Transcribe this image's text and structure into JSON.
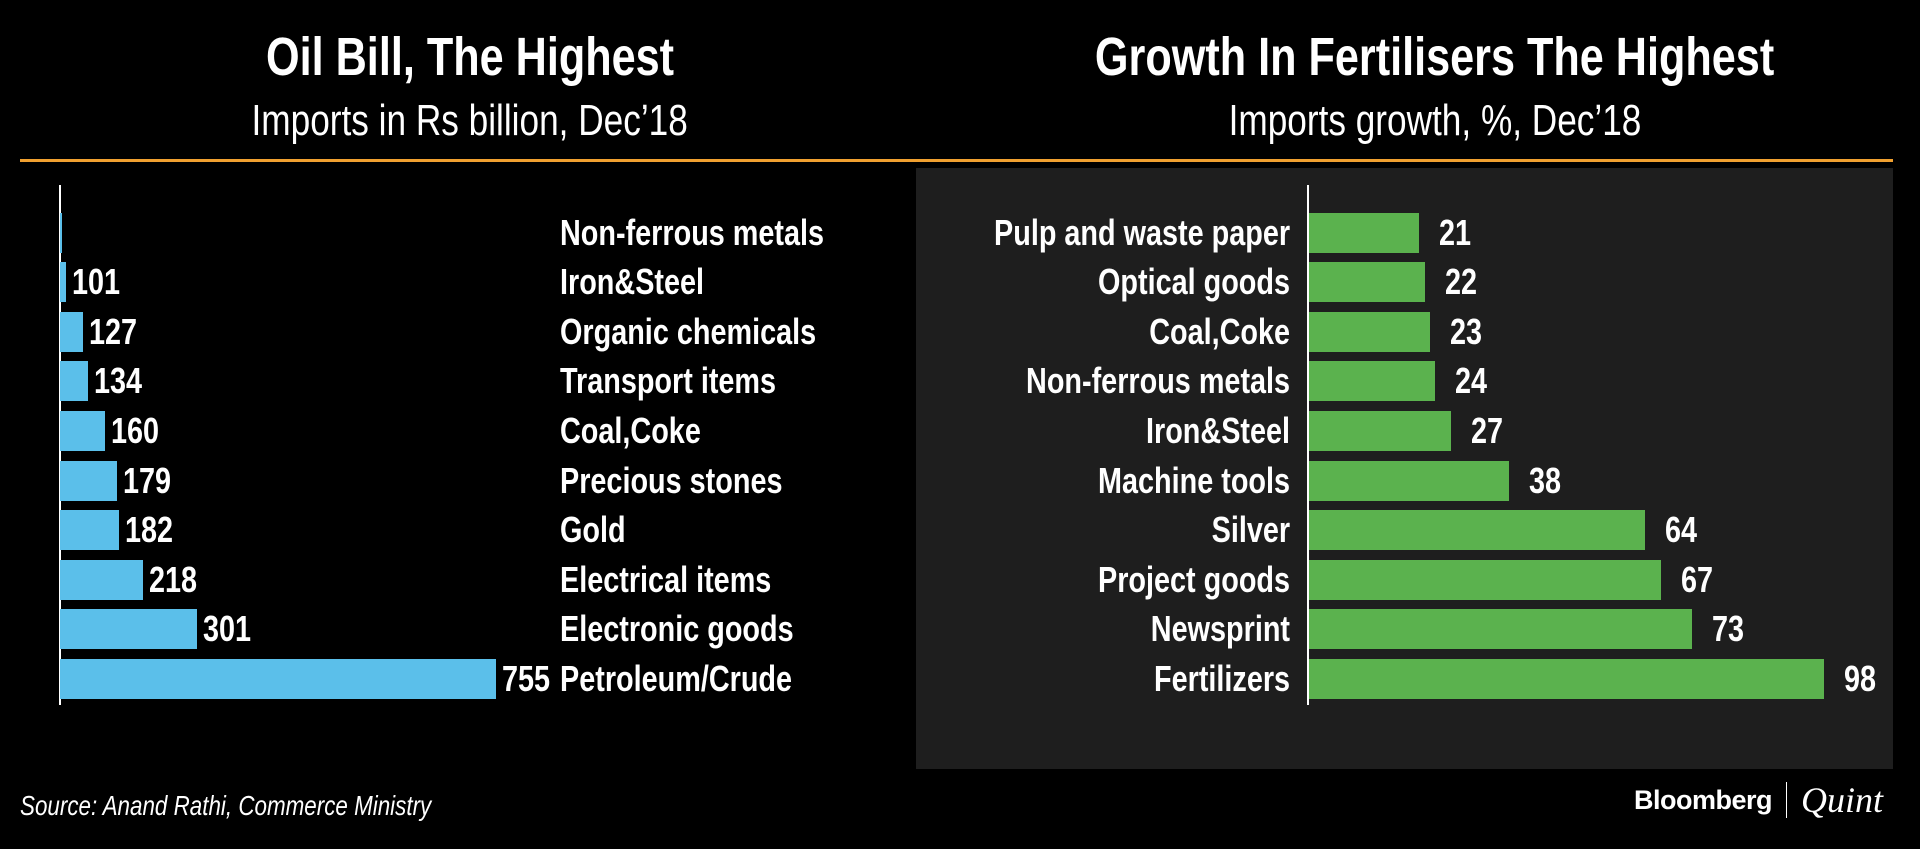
{
  "chart_data": [
    {
      "type": "bar",
      "orientation": "horizontal",
      "title": "Oil Bill, The Highest",
      "subtitle": "Imports in Rs billion, Dec’18",
      "categories": [
        "Non-ferrous metals",
        "Iron&Steel",
        "Organic chemicals",
        "Transport items",
        "Coal,Coke",
        "Precious stones",
        "Gold",
        "Electrical items",
        "Electronic goods",
        "Petroleum/Crude"
      ],
      "values": [
        93,
        101,
        127,
        134,
        160,
        179,
        182,
        218,
        301,
        755
      ],
      "value_labels": [
        "",
        "101",
        "127",
        "134",
        "160",
        "179",
        "182",
        "218",
        "301",
        "755"
      ],
      "xlim": [
        92,
        755
      ],
      "bar_color": "#5bbfea",
      "grid": false
    },
    {
      "type": "bar",
      "orientation": "horizontal",
      "title": "Growth In Fertilisers The Highest",
      "subtitle": "Imports growth, %, Dec’18",
      "categories": [
        "Pulp and waste paper",
        "Optical goods",
        "Coal,Coke",
        "Non-ferrous metals",
        "Iron&Steel",
        "Machine tools",
        "Silver",
        "Project goods",
        "Newsprint",
        "Fertilizers"
      ],
      "values": [
        21,
        22,
        23,
        24,
        27,
        38,
        64,
        67,
        73,
        98
      ],
      "value_labels": [
        "21",
        "22",
        "23",
        "24",
        "27",
        "38",
        "64",
        "67",
        "73",
        "98"
      ],
      "xlim": [
        0,
        98
      ],
      "bar_color": "#5bb24e",
      "grid": false
    }
  ],
  "footer": {
    "source": "Source: Anand Rathi, Commerce Ministry",
    "logo_left": "Bloomberg",
    "logo_right": "Quint"
  },
  "colors": {
    "accent_rule": "#f0a030",
    "panel": "#1e1e1e"
  }
}
